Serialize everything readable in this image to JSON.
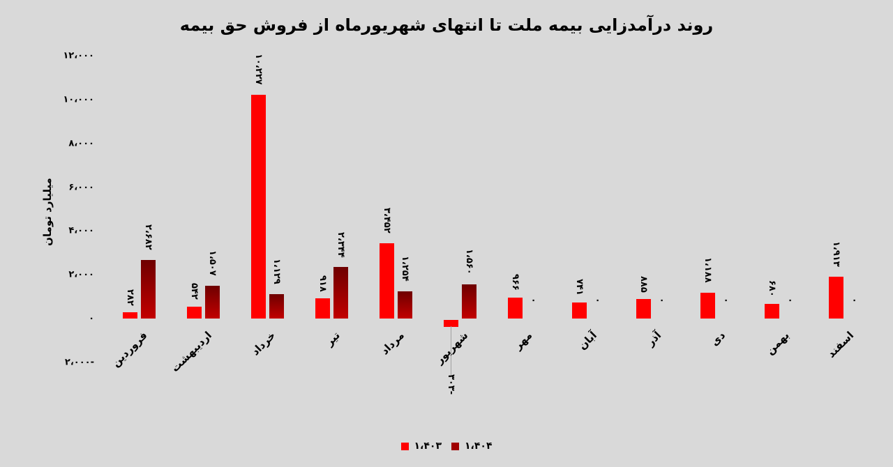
{
  "chart_data": {
    "type": "bar",
    "title": "روند درآمدزایی بیمه ملت تا انتهای شهریورماه از فروش حق بیمه",
    "xlabel": "",
    "ylabel": "میلیارد تومان",
    "ylim": [
      -2000,
      12000
    ],
    "yticks": [
      "۱۲،۰۰۰",
      "۱۰،۰۰۰",
      "۸،۰۰۰",
      "۶،۰۰۰",
      "۴،۰۰۰",
      "۲،۰۰۰",
      "۰",
      "۲،۰۰۰-"
    ],
    "ytick_values": [
      12000,
      10000,
      8000,
      6000,
      4000,
      2000,
      0,
      -2000
    ],
    "grid": false,
    "legend_position": "bottom",
    "categories": [
      "فروردین",
      "اردیبهشت",
      "خرداد",
      "تیر",
      "مرداد",
      "شهریور",
      "مهر",
      "آبان",
      "آذر",
      "دی",
      "بهمن",
      "اسفند"
    ],
    "series": [
      {
        "name": "۱،۴۰۳",
        "color": "#ff0000",
        "values": [
          282,
          542,
          10227,
          918,
          3452,
          -303,
          966,
          741,
          885,
          1188,
          680,
          1913
        ],
        "labels": [
          "۲۸۲",
          "۵۴۲",
          "۱۰،۲۲۷",
          "۹۱۸",
          "۳،۴۵۲",
          "۳۰۳-",
          "۹۶۶",
          "۷۴۱",
          "۸۸۵",
          "۱،۱۸۸",
          "۶۸۰",
          "۱،۹۱۳"
        ]
      },
      {
        "name": "۱،۴۰۴",
        "color": "#a00000",
        "values": [
          2682,
          1507,
          1129,
          2344,
          1254,
          1560,
          0,
          0,
          0,
          0,
          0,
          0
        ],
        "labels": [
          "۲،۶۸۲",
          "۱،۵۰۷",
          "۱،۱۲۹",
          "۲،۳۴۴",
          "۱،۲۵۴",
          "۱،۵۶۰",
          "۰",
          "۰",
          "۰",
          "۰",
          "۰",
          "۰"
        ]
      }
    ]
  },
  "legend": {
    "items": [
      {
        "label": "۱،۴۰۳",
        "color": "#ff0000"
      },
      {
        "label": "۱،۴۰۴",
        "color": "#a00000"
      }
    ]
  }
}
